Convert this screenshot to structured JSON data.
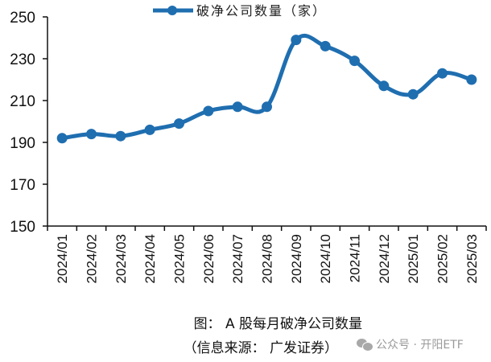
{
  "chart_data": {
    "type": "line",
    "title": "图：A股每月破净公司数量",
    "subtitle": "（信息来源：广发证券）",
    "xlabel": "",
    "ylabel": "",
    "legend": [
      "破净公司数量（家）"
    ],
    "legend_position": "top",
    "categories": [
      "2024/01",
      "2024/02",
      "2024/03",
      "2024/04",
      "2024/05",
      "2024/06",
      "2024/07",
      "2024/08",
      "2024/09",
      "2024/10",
      "2024/11",
      "2024/12",
      "2025/01",
      "2025/02",
      "2025/03"
    ],
    "series": [
      {
        "name": "破净公司数量（家）",
        "values": [
          192,
          194,
          193,
          196,
          199,
          205,
          207,
          207,
          239,
          236,
          229,
          217,
          213,
          223,
          220
        ],
        "color": "#1f6eb0"
      }
    ],
    "ylim": [
      150,
      250
    ],
    "yticks": [
      150,
      170,
      190,
      210,
      230,
      250
    ],
    "grid": false
  },
  "legend": {
    "label": "破净公司数量（家）"
  },
  "caption": {
    "title": "图：  A 股每月破净公司数量",
    "source": "（信息来源：  广发证券）"
  },
  "watermark": {
    "text": "公众号 · 开阳ETF"
  },
  "colors": {
    "line": "#1f6eb0",
    "axis": "#111111"
  }
}
